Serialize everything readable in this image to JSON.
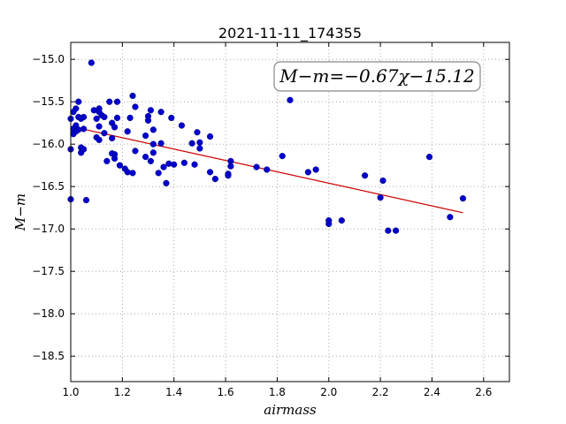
{
  "chart_data": {
    "type": "scatter",
    "title": "2021-11-11_174355",
    "xlabel": "airmass",
    "ylabel": "M−m",
    "xlim": [
      1.0,
      2.7
    ],
    "ylim": [
      -18.8,
      -14.8
    ],
    "x_ticks": [
      1.0,
      1.2,
      1.4,
      1.6,
      1.8,
      2.0,
      2.2,
      2.4,
      2.6
    ],
    "x_tick_labels": [
      "1.0",
      "1.2",
      "1.4",
      "1.6",
      "1.8",
      "2.0",
      "2.2",
      "2.4",
      "2.6"
    ],
    "y_ticks": [
      -15.0,
      -15.5,
      -16.0,
      -16.5,
      -17.0,
      -17.5,
      -18.0,
      -18.5
    ],
    "y_tick_labels": [
      "−15.0",
      "−15.5",
      "−16.0",
      "−16.5",
      "−17.0",
      "−17.5",
      "−18.0",
      "−18.5"
    ],
    "grid": true,
    "annotation": "M−m=−0.67χ−15.12",
    "colors": {
      "points": "#0000cc",
      "fit": "#cc0000",
      "grid": "#999999"
    },
    "fit": {
      "slope": -0.67,
      "intercept": -15.12,
      "x_range": [
        1.0,
        2.52
      ]
    },
    "points": [
      [
        1.0,
        -15.7
      ],
      [
        1.0,
        -16.06
      ],
      [
        1.0,
        -16.65
      ],
      [
        1.01,
        -15.62
      ],
      [
        1.01,
        -15.82
      ],
      [
        1.01,
        -15.88
      ],
      [
        1.02,
        -15.58
      ],
      [
        1.02,
        -15.78
      ],
      [
        1.02,
        -15.85
      ],
      [
        1.03,
        -15.5
      ],
      [
        1.03,
        -15.68
      ],
      [
        1.03,
        -15.83
      ],
      [
        1.04,
        -15.7
      ],
      [
        1.04,
        -16.04
      ],
      [
        1.04,
        -16.1
      ],
      [
        1.05,
        -15.68
      ],
      [
        1.05,
        -15.82
      ],
      [
        1.05,
        -16.06
      ],
      [
        1.06,
        -16.66
      ],
      [
        1.08,
        -15.04
      ],
      [
        1.09,
        -15.6
      ],
      [
        1.1,
        -15.7
      ],
      [
        1.1,
        -15.92
      ],
      [
        1.11,
        -15.58
      ],
      [
        1.11,
        -15.62
      ],
      [
        1.11,
        -15.79
      ],
      [
        1.11,
        -15.95
      ],
      [
        1.12,
        -15.66
      ],
      [
        1.13,
        -15.68
      ],
      [
        1.13,
        -15.87
      ],
      [
        1.14,
        -16.2
      ],
      [
        1.15,
        -15.5
      ],
      [
        1.16,
        -15.75
      ],
      [
        1.16,
        -15.93
      ],
      [
        1.16,
        -16.11
      ],
      [
        1.17,
        -15.8
      ],
      [
        1.17,
        -16.12
      ],
      [
        1.17,
        -16.17
      ],
      [
        1.18,
        -15.5
      ],
      [
        1.18,
        -15.69
      ],
      [
        1.19,
        -16.25
      ],
      [
        1.21,
        -16.29
      ],
      [
        1.22,
        -15.85
      ],
      [
        1.22,
        -16.33
      ],
      [
        1.23,
        -15.69
      ],
      [
        1.24,
        -16.34
      ],
      [
        1.24,
        -15.43
      ],
      [
        1.25,
        -15.56
      ],
      [
        1.25,
        -16.08
      ],
      [
        1.29,
        -15.9
      ],
      [
        1.29,
        -16.15
      ],
      [
        1.3,
        -15.67
      ],
      [
        1.3,
        -15.72
      ],
      [
        1.31,
        -15.6
      ],
      [
        1.31,
        -16.2
      ],
      [
        1.32,
        -15.83
      ],
      [
        1.32,
        -16.0
      ],
      [
        1.32,
        -16.1
      ],
      [
        1.34,
        -16.34
      ],
      [
        1.35,
        -15.62
      ],
      [
        1.35,
        -15.99
      ],
      [
        1.36,
        -16.27
      ],
      [
        1.37,
        -16.46
      ],
      [
        1.38,
        -16.23
      ],
      [
        1.39,
        -15.69
      ],
      [
        1.4,
        -16.24
      ],
      [
        1.43,
        -15.78
      ],
      [
        1.44,
        -16.22
      ],
      [
        1.47,
        -15.99
      ],
      [
        1.48,
        -16.24
      ],
      [
        1.49,
        -15.86
      ],
      [
        1.5,
        -15.98
      ],
      [
        1.5,
        -16.05
      ],
      [
        1.54,
        -16.33
      ],
      [
        1.54,
        -15.91
      ],
      [
        1.56,
        -16.41
      ],
      [
        1.61,
        -16.35
      ],
      [
        1.61,
        -16.37
      ],
      [
        1.62,
        -16.2
      ],
      [
        1.62,
        -16.26
      ],
      [
        1.72,
        -16.27
      ],
      [
        1.76,
        -16.3
      ],
      [
        1.82,
        -16.14
      ],
      [
        1.85,
        -15.48
      ],
      [
        1.92,
        -16.33
      ],
      [
        1.95,
        -16.3
      ],
      [
        2.0,
        -16.9
      ],
      [
        2.0,
        -16.94
      ],
      [
        2.05,
        -16.9
      ],
      [
        2.14,
        -16.37
      ],
      [
        2.2,
        -16.63
      ],
      [
        2.21,
        -16.43
      ],
      [
        2.23,
        -17.02
      ],
      [
        2.26,
        -17.02
      ],
      [
        2.39,
        -16.15
      ],
      [
        2.47,
        -16.86
      ],
      [
        2.52,
        -16.64
      ]
    ]
  }
}
